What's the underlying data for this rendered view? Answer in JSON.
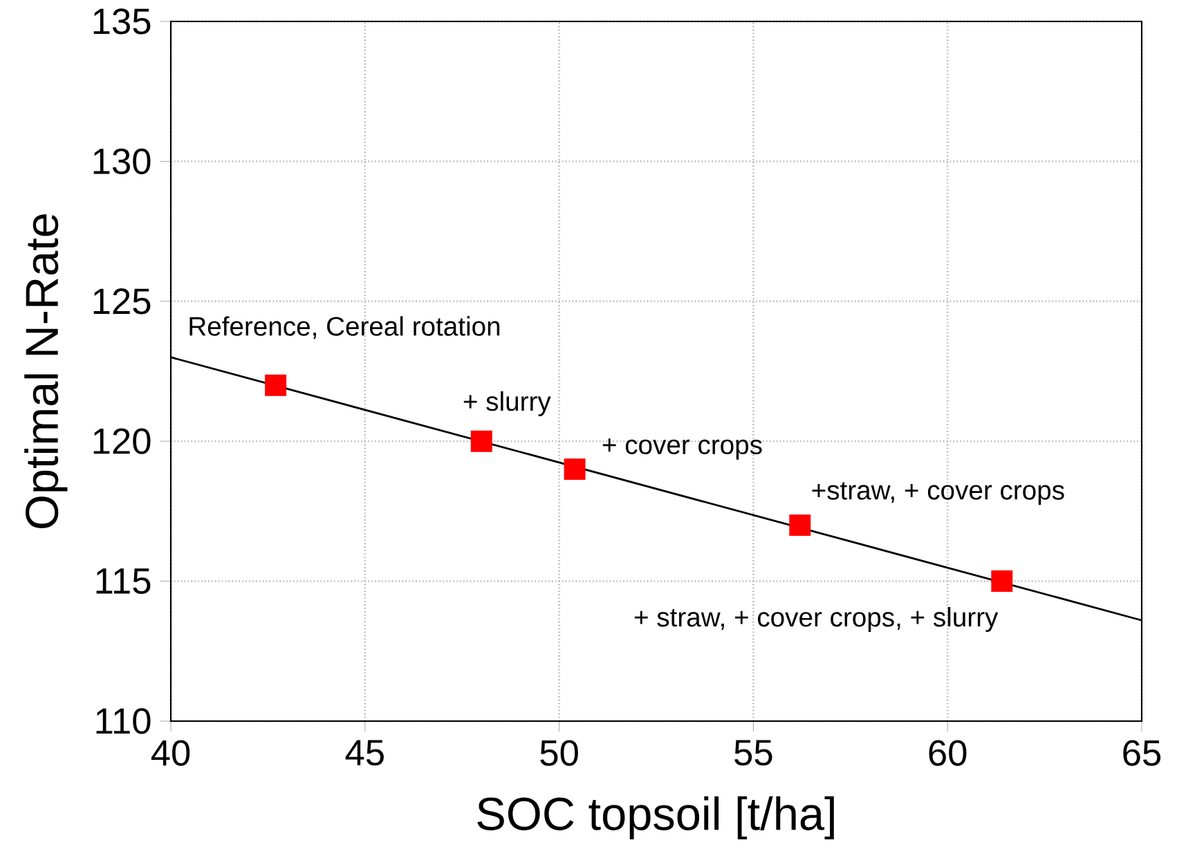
{
  "chart_data": {
    "type": "scatter",
    "xlabel": "SOC topsoil [t/ha]",
    "ylabel": "Optimal N-Rate",
    "xlim": [
      40,
      65
    ],
    "ylim": [
      110,
      135
    ],
    "xticks": [
      40,
      45,
      50,
      55,
      60,
      65
    ],
    "yticks": [
      110,
      115,
      120,
      125,
      130,
      135
    ],
    "grid": true,
    "marker": "square",
    "series": [
      {
        "type": "line",
        "color": "#000000",
        "x": [
          40,
          65
        ],
        "values": [
          123.0,
          113.6
        ],
        "marker": "none"
      },
      {
        "color": "#ff0000",
        "x": [
          42.7,
          48.0,
          50.4,
          56.2,
          61.4
        ],
        "values": [
          122,
          120,
          119,
          117,
          115
        ]
      }
    ],
    "annotations": [
      {
        "text": "Reference, Cereal rotation",
        "x": 42.7,
        "y": 122
      },
      {
        "text": "+ slurry",
        "x": 48.0,
        "y": 120
      },
      {
        "text": "+ cover crops",
        "x": 50.4,
        "y": 119
      },
      {
        "text": "+straw, + cover crops",
        "x": 56.2,
        "y": 117
      },
      {
        "text": "+ straw, + cover crops,  + slurry",
        "x": 61.4,
        "y": 115
      }
    ]
  }
}
